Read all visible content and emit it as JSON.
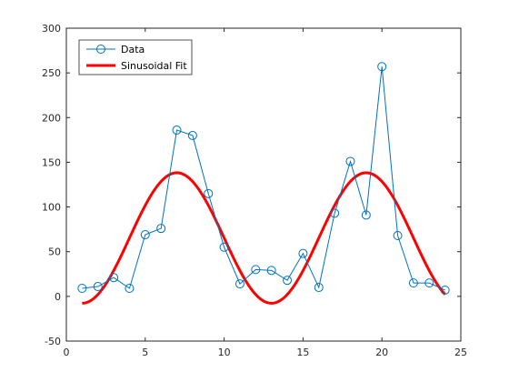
{
  "chart_data": {
    "type": "line",
    "title": "",
    "xlabel": "",
    "ylabel": "",
    "xlim": [
      0,
      25
    ],
    "ylim": [
      -50,
      300
    ],
    "xticks": [
      0,
      5,
      10,
      15,
      20,
      25
    ],
    "yticks": [
      -50,
      0,
      50,
      100,
      150,
      200,
      250,
      300
    ],
    "grid": false,
    "legend_position": "top-left",
    "series": [
      {
        "name": "Data",
        "style": "line-with-circle-markers",
        "color": "#0072BD",
        "x": [
          1,
          2,
          3,
          4,
          5,
          6,
          7,
          8,
          9,
          10,
          11,
          12,
          13,
          14,
          15,
          16,
          17,
          18,
          19,
          20,
          21,
          22,
          23,
          24
        ],
        "y": [
          9,
          11,
          21,
          9,
          69,
          76,
          186,
          180,
          115,
          55,
          14,
          30,
          29,
          18,
          48,
          10,
          93,
          151,
          91,
          257,
          68,
          15,
          15,
          7
        ]
      },
      {
        "name": "Sinusoidal Fit",
        "style": "thick-line",
        "color": "#FF0000",
        "fit": {
          "offset": 65.3,
          "amplitude": 73,
          "period": 12,
          "peak_x": 7
        },
        "x_range": [
          1,
          24
        ]
      }
    ]
  }
}
